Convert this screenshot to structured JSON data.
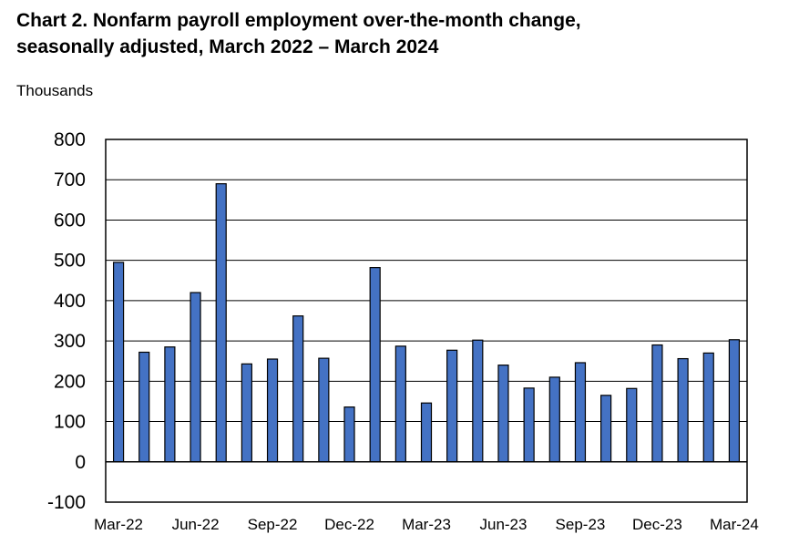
{
  "chart_data": {
    "type": "bar",
    "title_line1": "Chart 2. Nonfarm payroll employment over-the-month change,",
    "title_line2": "seasonally adjusted, March 2022 – March 2024",
    "ylabel": "Thousands",
    "xlabel": "",
    "ylim": [
      -100,
      800
    ],
    "yticks": [
      -100,
      0,
      100,
      200,
      300,
      400,
      500,
      600,
      700,
      800
    ],
    "xtick_labels": [
      "Mar-22",
      "Jun-22",
      "Sep-22",
      "Dec-22",
      "Mar-23",
      "Jun-23",
      "Sep-23",
      "Dec-23",
      "Mar-24"
    ],
    "xtick_every": 3,
    "categories": [
      "Mar-22",
      "Apr-22",
      "May-22",
      "Jun-22",
      "Jul-22",
      "Aug-22",
      "Sep-22",
      "Oct-22",
      "Nov-22",
      "Dec-22",
      "Jan-23",
      "Feb-23",
      "Mar-23",
      "Apr-23",
      "May-23",
      "Jun-23",
      "Jul-23",
      "Aug-23",
      "Sep-23",
      "Oct-23",
      "Nov-23",
      "Dec-23",
      "Jan-24",
      "Feb-24",
      "Mar-24"
    ],
    "values": [
      495,
      272,
      285,
      420,
      690,
      243,
      255,
      362,
      257,
      136,
      482,
      287,
      146,
      277,
      302,
      240,
      183,
      210,
      246,
      165,
      182,
      290,
      256,
      270,
      303
    ],
    "bar_color": "#4472c4",
    "grid": true
  }
}
